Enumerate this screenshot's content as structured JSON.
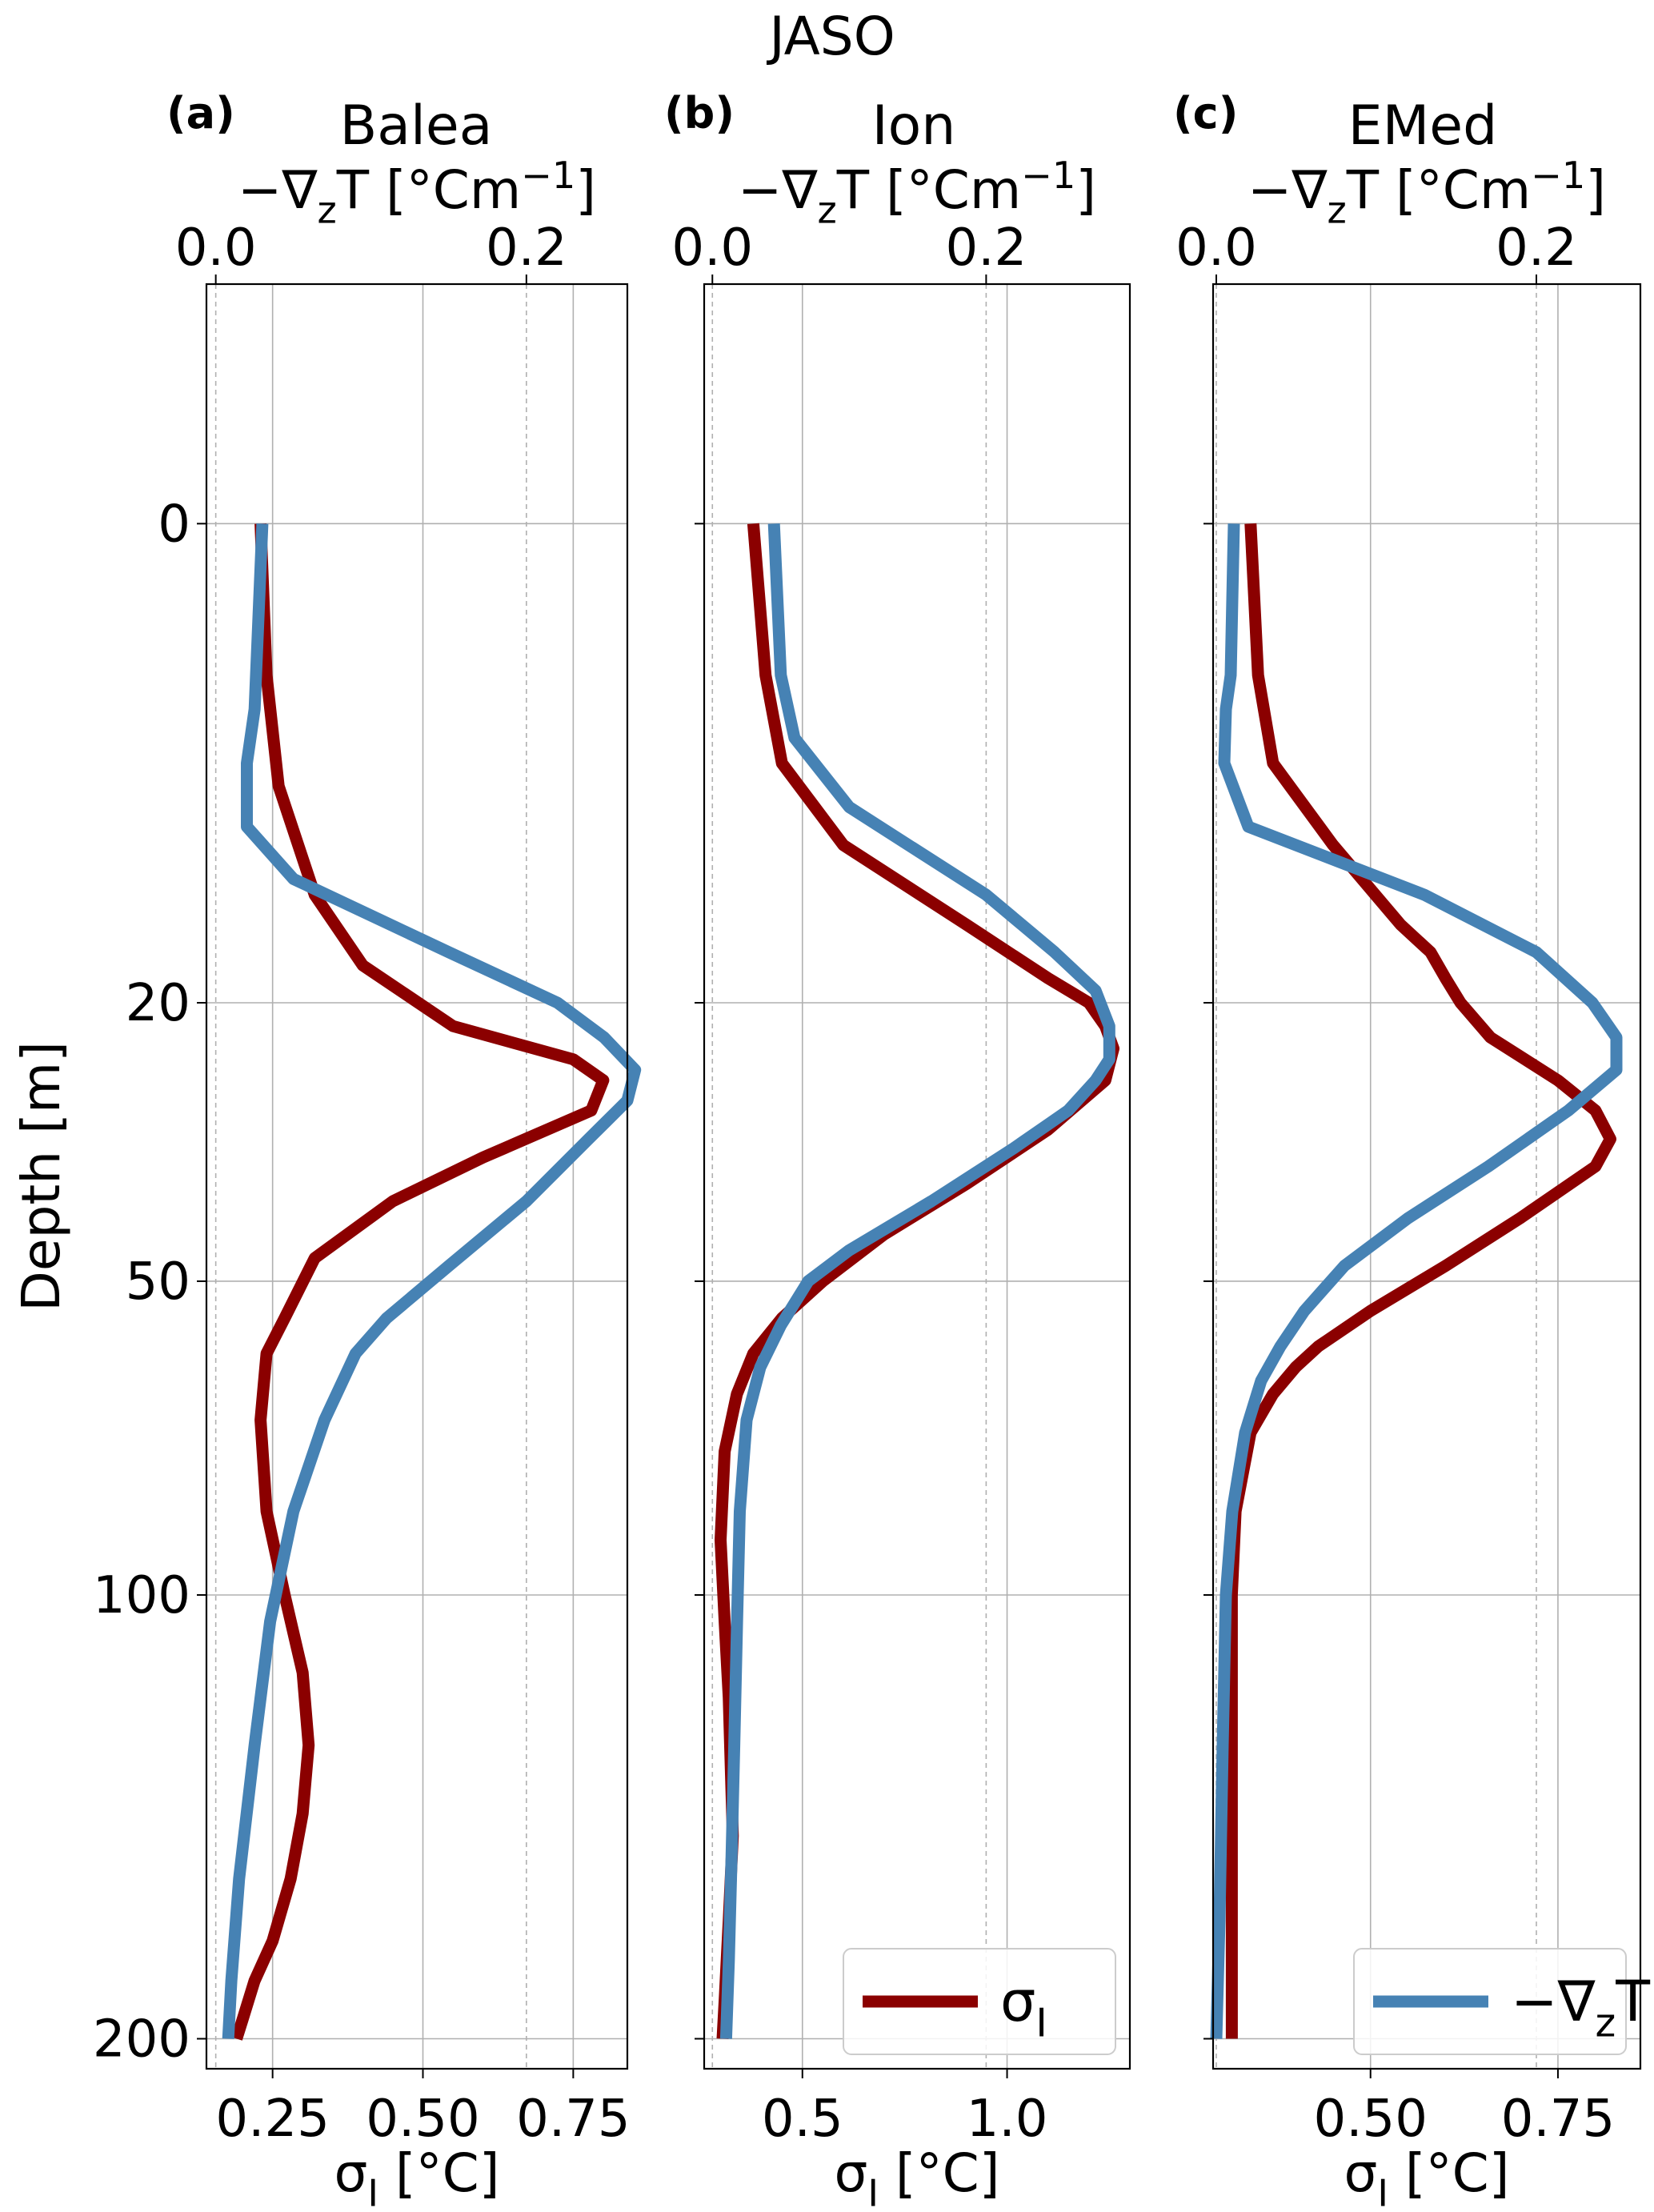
{
  "figure": {
    "suptitle": "JASO",
    "ylabel": "Depth [m]",
    "depth_ticks": [
      0,
      20,
      50,
      100,
      200
    ],
    "colors": {
      "sigma": "#8b0000",
      "gradT": "#4682b4"
    }
  },
  "chart_data": [
    {
      "type": "line",
      "panel_label": "(a)",
      "title": "Balea",
      "xlabel": "σ_I [°C]",
      "xlabel_top": "−∇_zT  [°Cm⁻¹]",
      "yscale": "sqrt",
      "ylim": [
        208,
        -5
      ],
      "xlim": [
        0.14,
        0.84
      ],
      "x_ticks": [
        0.25,
        0.5,
        0.75
      ],
      "x_tick_labels": [
        "0.25",
        "0.50",
        "0.75"
      ],
      "xlim_top": [
        -0.006,
        0.265
      ],
      "x_ticks_top": [
        0.0,
        0.2
      ],
      "x_tick_labels_top": [
        "0.0",
        "0.2"
      ],
      "legend": null,
      "series": [
        {
          "key": "sigma",
          "x": [
            0.23,
            0.24,
            0.26,
            0.32,
            0.4,
            0.55,
            0.75,
            0.8,
            0.78,
            0.6,
            0.45,
            0.32,
            0.27,
            0.24,
            0.23,
            0.24,
            0.27,
            0.3,
            0.31,
            0.3,
            0.28,
            0.25,
            0.22,
            0.2,
            0.19
          ],
          "y": [
            0,
            2,
            6,
            12,
            17,
            22,
            25,
            27,
            30,
            35,
            40,
            47,
            55,
            60,
            70,
            85,
            100,
            115,
            130,
            145,
            160,
            175,
            185,
            195,
            200
          ]
        },
        {
          "x": [
            0.03,
            0.025,
            0.02,
            0.02,
            0.05,
            0.15,
            0.22,
            0.25,
            0.27,
            0.265,
            0.24,
            0.2,
            0.15,
            0.11,
            0.09,
            0.07,
            0.05,
            0.035,
            0.025,
            0.015,
            0.01,
            0.008
          ],
          "y": [
            0,
            3,
            5,
            8,
            11,
            16,
            20,
            23,
            26,
            29,
            33,
            40,
            48,
            55,
            60,
            70,
            85,
            105,
            130,
            160,
            185,
            200
          ],
          "key": "gradT"
        }
      ]
    },
    {
      "type": "line",
      "panel_label": "(b)",
      "title": "Ion",
      "xlabel": "σ_I [°C]",
      "xlabel_top": "−∇_zT  [°Cm⁻¹]",
      "yscale": "sqrt",
      "ylim": [
        208,
        -5
      ],
      "xlim": [
        0.26,
        1.3
      ],
      "x_ticks": [
        0.5,
        1.0
      ],
      "x_tick_labels": [
        "0.5",
        "1.0"
      ],
      "xlim_top": [
        -0.006,
        0.305
      ],
      "x_ticks_top": [
        0.0,
        0.2
      ],
      "x_tick_labels_top": [
        "0.0",
        "0.2"
      ],
      "legend": {
        "position": "lower right",
        "entries": [
          "σ_I"
        ],
        "keys": [
          "sigma"
        ]
      },
      "series": [
        {
          "key": "sigma",
          "x": [
            0.38,
            0.41,
            0.45,
            0.6,
            0.9,
            1.1,
            1.2,
            1.24,
            1.26,
            1.24,
            1.1,
            0.9,
            0.7,
            0.55,
            0.45,
            0.38,
            0.34,
            0.31,
            0.3,
            0.31,
            0.32,
            0.325,
            0.33,
            0.32,
            0.31,
            0.305
          ],
          "y": [
            0,
            2,
            5,
            9,
            14,
            18,
            20,
            22,
            24,
            27,
            32,
            38,
            44,
            50,
            55,
            60,
            66,
            75,
            90,
            105,
            120,
            135,
            150,
            170,
            190,
            200
          ],
          "key_": null
        },
        {
          "key": "gradT",
          "x": [
            0.045,
            0.05,
            0.06,
            0.1,
            0.2,
            0.25,
            0.28,
            0.29,
            0.29,
            0.28,
            0.26,
            0.22,
            0.16,
            0.1,
            0.07,
            0.05,
            0.035,
            0.025,
            0.02,
            0.018,
            0.016,
            0.014,
            0.012,
            0.01
          ],
          "y": [
            0,
            2,
            4,
            7,
            12,
            16,
            19,
            22,
            25,
            27,
            30,
            34,
            40,
            46,
            50,
            56,
            62,
            70,
            85,
            105,
            130,
            155,
            180,
            200
          ]
        }
      ]
    },
    {
      "type": "line",
      "panel_label": "(c)",
      "title": "EMed",
      "xlabel": "σ_I [°C]",
      "xlabel_top": "−∇_zT  [°Cm⁻¹]",
      "yscale": "sqrt",
      "ylim": [
        208,
        -5
      ],
      "xlim": [
        0.29,
        0.86
      ],
      "x_ticks": [
        0.5,
        0.75
      ],
      "x_tick_labels": [
        "0.50",
        "0.75"
      ],
      "xlim_top": [
        -0.002,
        0.265
      ],
      "x_ticks_top": [
        0.0,
        0.2
      ],
      "x_tick_labels_top": [
        "0.0",
        "0.2"
      ],
      "legend": {
        "position": "lower right",
        "entries": [
          "−∇_zT"
        ],
        "keys": [
          "gradT"
        ]
      },
      "series": [
        {
          "key": "sigma",
          "x": [
            0.34,
            0.35,
            0.37,
            0.45,
            0.54,
            0.58,
            0.6,
            0.62,
            0.66,
            0.75,
            0.8,
            0.82,
            0.8,
            0.7,
            0.6,
            0.5,
            0.43,
            0.4,
            0.37,
            0.34,
            0.32,
            0.315,
            0.315,
            0.315
          ],
          "y": [
            0,
            2,
            5,
            9,
            14,
            16,
            18,
            20,
            23,
            27,
            30,
            33,
            36,
            42,
            48,
            54,
            59,
            62,
            66,
            72,
            85,
            100,
            150,
            200
          ]
        },
        {
          "key": "gradT",
          "x": [
            0.011,
            0.009,
            0.006,
            0.005,
            0.02,
            0.13,
            0.2,
            0.235,
            0.25,
            0.25,
            0.22,
            0.17,
            0.12,
            0.08,
            0.055,
            0.04,
            0.028,
            0.018,
            0.01,
            0.006,
            0.004,
            0.002,
            0.0
          ],
          "y": [
            0,
            2,
            3,
            5,
            8,
            12,
            16,
            20,
            23,
            26,
            30,
            36,
            42,
            48,
            54,
            59,
            64,
            72,
            85,
            100,
            130,
            170,
            200
          ]
        }
      ]
    }
  ]
}
